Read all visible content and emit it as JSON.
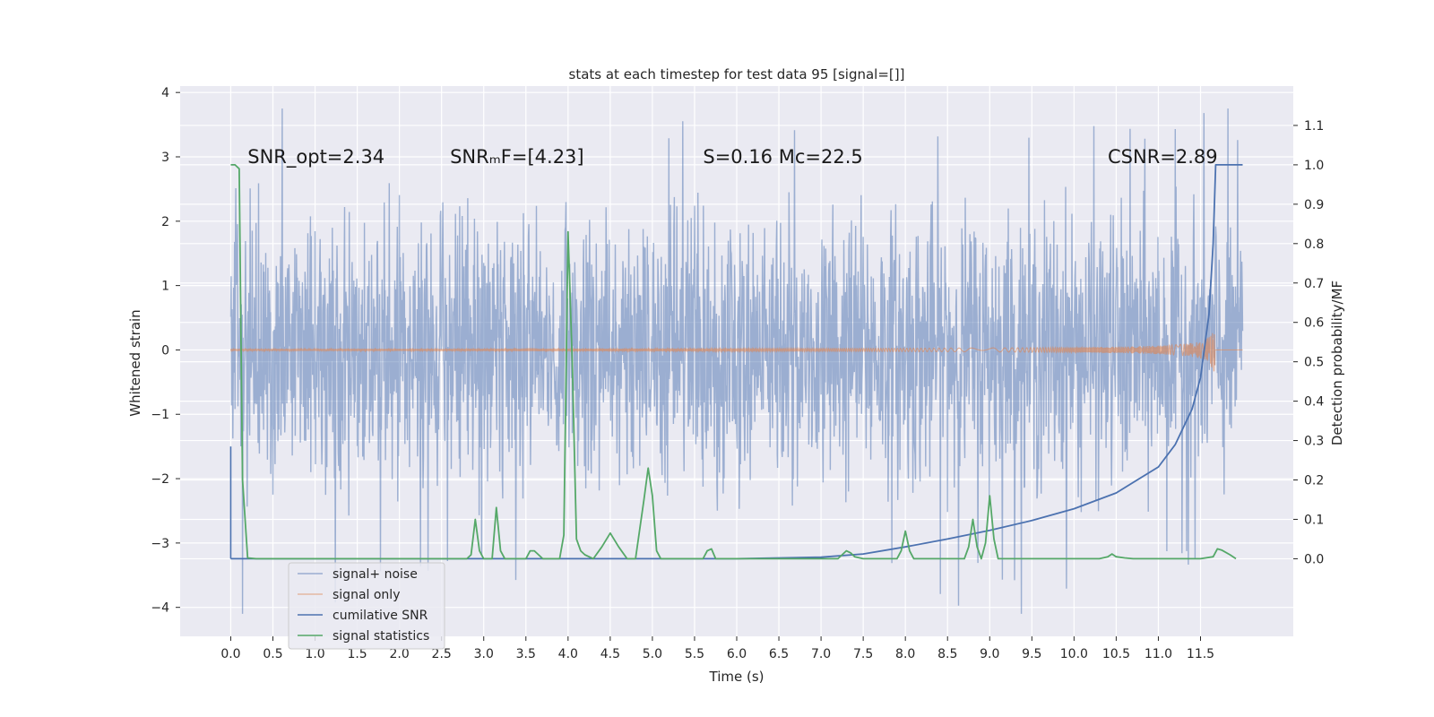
{
  "chart_data": {
    "type": "line",
    "title": "stats at each timestep for test data 95 [signal=[]]",
    "xlabel": "Time (s)",
    "ylabel": "Whitened strain",
    "y2label": "Detection probability/MF",
    "xlim": [
      -0.6,
      12.6
    ],
    "ylim": [
      -4.45,
      4.1
    ],
    "y2lim": [
      -0.197,
      1.2
    ],
    "xticks": [
      0.0,
      0.5,
      1.0,
      1.5,
      2.0,
      2.5,
      3.0,
      3.5,
      4.0,
      4.5,
      5.0,
      5.5,
      6.0,
      6.5,
      7.0,
      7.5,
      8.0,
      8.5,
      9.0,
      9.5,
      10.0,
      10.5,
      11.0,
      11.5
    ],
    "xtick_labels": [
      "0.0",
      "0.5",
      "1.0",
      "1.5",
      "2.0",
      "2.5",
      "3.0",
      "3.5",
      "4.0",
      "4.5",
      "5.0",
      "5.5",
      "6.0",
      "6.5",
      "7.0",
      "7.5",
      "8.0",
      "8.5",
      "9.0",
      "9.5",
      "10.0",
      "10.5",
      "11.0",
      "11.5"
    ],
    "yticks": [
      -4,
      -3,
      -2,
      -1,
      0,
      1,
      2,
      3,
      4
    ],
    "ytick_labels": [
      "−4",
      "−3",
      "−2",
      "−1",
      "0",
      "1",
      "2",
      "3",
      "4"
    ],
    "y2ticks": [
      0.0,
      0.1,
      0.2,
      0.3,
      0.4,
      0.5,
      0.6,
      0.7,
      0.8,
      0.9,
      1.0,
      1.1
    ],
    "y2tick_labels": [
      "0.0",
      "0.1",
      "0.2",
      "0.3",
      "0.4",
      "0.5",
      "0.6",
      "0.7",
      "0.8",
      "0.9",
      "1.0",
      "1.1"
    ],
    "grid": true,
    "legend_position": "lower-left",
    "annotations": [
      {
        "text": "SNR_opt=2.34",
        "x": 0.2,
        "y": 3.0
      },
      {
        "text": "SNRₘF=[4.23]",
        "x": 2.6,
        "y": 3.0
      },
      {
        "text": "S=0.16  Mᴄ=22.5",
        "x": 5.6,
        "y": 3.0
      },
      {
        "text": "CSNR=2.89",
        "x": 10.4,
        "y": 3.0
      }
    ],
    "series": [
      {
        "name": "signal+ noise",
        "axis": "left",
        "color": "#4c72b0",
        "kind": "noise",
        "x_range": [
          0.0,
          12.0
        ],
        "amplitude_typical": 1.7,
        "y_min": -4.1,
        "y_max": 3.75
      },
      {
        "name": "signal only",
        "axis": "left",
        "color": "#dd8452",
        "kind": "chirp",
        "x_range": [
          0.0,
          11.7
        ],
        "x_peak": 11.67,
        "amplitude_peak": 0.47
      },
      {
        "name": "cumilative SNR",
        "axis": "right",
        "color": "#4c72b0",
        "x": [
          0.0,
          6.0,
          7.0,
          7.5,
          8.0,
          8.5,
          9.0,
          9.5,
          10.0,
          10.5,
          11.0,
          11.2,
          11.4,
          11.5,
          11.6,
          11.65,
          11.68,
          12.0
        ],
        "values": [
          0.0,
          0.0,
          0.004,
          0.012,
          0.03,
          0.05,
          0.072,
          0.097,
          0.127,
          0.167,
          0.233,
          0.29,
          0.38,
          0.46,
          0.62,
          0.8,
          1.0,
          1.0
        ]
      },
      {
        "name": "signal statistics",
        "axis": "right",
        "color": "#55a868",
        "x": [
          0.0,
          0.05,
          0.1,
          0.12,
          0.14,
          0.2,
          0.3,
          2.8,
          2.85,
          2.9,
          2.95,
          3.0,
          3.1,
          3.15,
          3.2,
          3.25,
          3.3,
          3.5,
          3.55,
          3.6,
          3.7,
          3.9,
          3.95,
          4.0,
          4.05,
          4.1,
          4.15,
          4.2,
          4.3,
          4.4,
          4.5,
          4.6,
          4.7,
          4.8,
          4.9,
          4.95,
          5.0,
          5.05,
          5.1,
          5.2,
          5.6,
          5.65,
          5.7,
          5.75,
          7.2,
          7.25,
          7.3,
          7.35,
          7.4,
          7.5,
          7.9,
          7.95,
          8.0,
          8.05,
          8.1,
          8.7,
          8.75,
          8.8,
          8.85,
          8.9,
          8.95,
          9.0,
          9.05,
          9.1,
          9.5,
          10.3,
          10.4,
          10.45,
          10.5,
          10.6,
          10.7,
          11.5,
          11.65,
          11.7,
          11.75,
          11.85,
          11.92
        ],
        "values": [
          1.0,
          1.0,
          0.99,
          0.6,
          0.2,
          0.002,
          0.0,
          0.0,
          0.01,
          0.1,
          0.02,
          0.0,
          0.0,
          0.13,
          0.02,
          0.0,
          0.0,
          0.0,
          0.02,
          0.02,
          0.0,
          0.0,
          0.06,
          0.83,
          0.5,
          0.05,
          0.02,
          0.01,
          0.0,
          0.03,
          0.065,
          0.03,
          0.0,
          0.0,
          0.15,
          0.23,
          0.16,
          0.02,
          0.0,
          0.0,
          0.0,
          0.02,
          0.025,
          0.0,
          0.0,
          0.01,
          0.02,
          0.015,
          0.005,
          0.0,
          0.0,
          0.02,
          0.07,
          0.02,
          0.0,
          0.0,
          0.03,
          0.1,
          0.03,
          0.0,
          0.04,
          0.16,
          0.05,
          0.0,
          0.0,
          0.0,
          0.005,
          0.012,
          0.005,
          0.002,
          0.0,
          0.0,
          0.005,
          0.025,
          0.022,
          0.01,
          0.0
        ]
      }
    ]
  }
}
